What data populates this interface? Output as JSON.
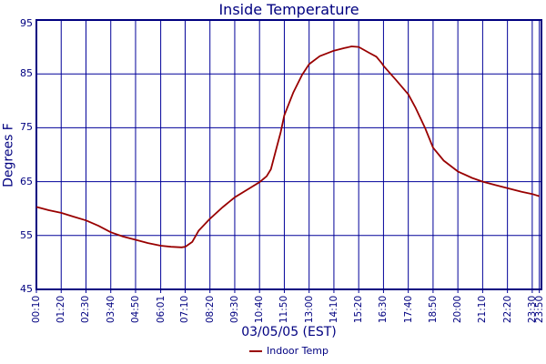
{
  "colors": {
    "background": "#ffffff",
    "grid": "#000099",
    "border": "#000080",
    "text": "#000080",
    "line": "#990000"
  },
  "chart_data": {
    "type": "line",
    "title": "Inside Temperature",
    "xlabel": "03/05/05 (EST)",
    "ylabel": "Degrees F",
    "ylim": [
      45,
      95
    ],
    "y_ticks": [
      45,
      55,
      65,
      75,
      85,
      95
    ],
    "x_ticks": [
      {
        "label": "00:10",
        "minute": 10
      },
      {
        "label": "01:20",
        "minute": 80
      },
      {
        "label": "02:30",
        "minute": 150
      },
      {
        "label": "03:40",
        "minute": 220
      },
      {
        "label": "04:50",
        "minute": 290
      },
      {
        "label": "06:01",
        "minute": 361
      },
      {
        "label": "07:10",
        "minute": 430
      },
      {
        "label": "08:20",
        "minute": 500
      },
      {
        "label": "09:30",
        "minute": 570
      },
      {
        "label": "10:40",
        "minute": 640
      },
      {
        "label": "11:50",
        "minute": 710
      },
      {
        "label": "13:00",
        "minute": 780
      },
      {
        "label": "14:10",
        "minute": 850
      },
      {
        "label": "15:20",
        "minute": 920
      },
      {
        "label": "16:30",
        "minute": 990
      },
      {
        "label": "17:40",
        "minute": 1060
      },
      {
        "label": "18:50",
        "minute": 1130
      },
      {
        "label": "20:00",
        "minute": 1200
      },
      {
        "label": "21:10",
        "minute": 1270
      },
      {
        "label": "22:20",
        "minute": 1340
      },
      {
        "label": "23:30",
        "minute": 1410
      },
      {
        "label": "23:50",
        "minute": 1430
      }
    ],
    "xlim_minutes": [
      10,
      1436
    ],
    "grid": true,
    "legend_position": "bottom",
    "series": [
      {
        "name": "Indoor Temp",
        "color": "#990000",
        "points": [
          [
            10,
            60.3
          ],
          [
            45,
            59.7
          ],
          [
            80,
            59.2
          ],
          [
            115,
            58.5
          ],
          [
            150,
            57.8
          ],
          [
            185,
            56.8
          ],
          [
            220,
            55.6
          ],
          [
            255,
            54.8
          ],
          [
            290,
            54.2
          ],
          [
            325,
            53.6
          ],
          [
            361,
            53.1
          ],
          [
            390,
            52.9
          ],
          [
            420,
            52.8
          ],
          [
            430,
            52.9
          ],
          [
            450,
            53.8
          ],
          [
            468,
            55.9
          ],
          [
            500,
            58.1
          ],
          [
            535,
            60.2
          ],
          [
            570,
            62.1
          ],
          [
            605,
            63.5
          ],
          [
            640,
            64.9
          ],
          [
            660,
            66.0
          ],
          [
            672,
            67.3
          ],
          [
            685,
            70.5
          ],
          [
            700,
            74.2
          ],
          [
            710,
            77.3
          ],
          [
            735,
            81.5
          ],
          [
            760,
            84.8
          ],
          [
            780,
            86.8
          ],
          [
            810,
            88.3
          ],
          [
            850,
            89.3
          ],
          [
            880,
            89.8
          ],
          [
            900,
            90.1
          ],
          [
            920,
            90.0
          ],
          [
            950,
            88.9
          ],
          [
            970,
            88.2
          ],
          [
            985,
            87.0
          ],
          [
            990,
            86.5
          ],
          [
            1025,
            83.9
          ],
          [
            1060,
            81.2
          ],
          [
            1080,
            78.8
          ],
          [
            1107,
            75.0
          ],
          [
            1130,
            71.3
          ],
          [
            1160,
            68.9
          ],
          [
            1200,
            66.9
          ],
          [
            1240,
            65.7
          ],
          [
            1270,
            65.0
          ],
          [
            1305,
            64.4
          ],
          [
            1340,
            63.8
          ],
          [
            1380,
            63.1
          ],
          [
            1410,
            62.7
          ],
          [
            1430,
            62.3
          ]
        ]
      }
    ]
  }
}
